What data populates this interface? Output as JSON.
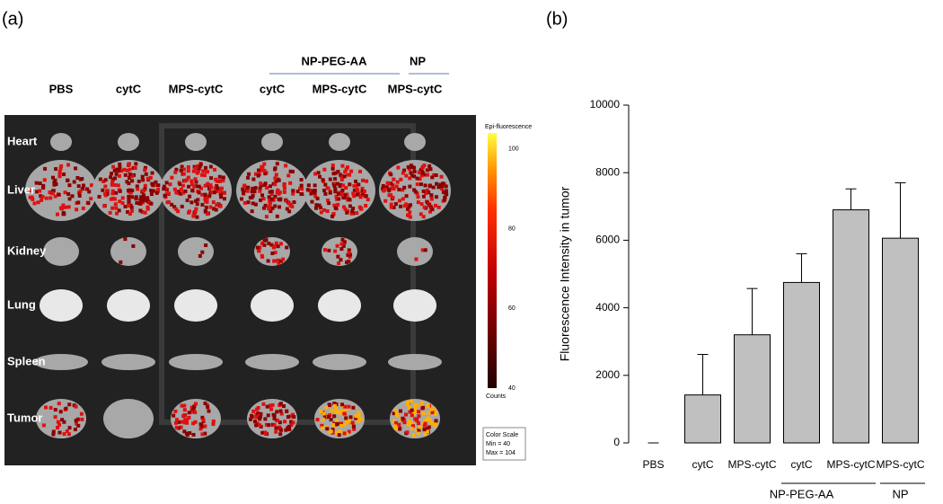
{
  "panel_a": {
    "label": "(a)",
    "columns": [
      "PBS",
      "cytC",
      "MPS-cytC",
      "cytC",
      "MPS-cytC",
      "MPS-cytC"
    ],
    "groups": [
      "NP-PEG-AA",
      "NP"
    ],
    "rows": [
      "Heart",
      "Liver",
      "Kidney",
      "Lung",
      "Spleen",
      "Tumor"
    ],
    "colorbar": {
      "title": "Epi-fluorescence",
      "ticks": [
        100,
        80,
        60,
        40
      ],
      "unit": "Counts"
    },
    "scale_box": [
      "Color Scale",
      "Min = 40",
      "Max = 104"
    ]
  },
  "chart_data": {
    "type": "bar",
    "panel_label": "(b)",
    "y_label": "Fluorescence Intensity in tumor",
    "categories": [
      "PBS",
      "cytC",
      "MPS-cytC",
      "cytC",
      "MPS-cytC",
      "MPS-cytC"
    ],
    "values": [
      0,
      1420,
      3200,
      4750,
      6900,
      6060
    ],
    "errors": [
      0,
      1200,
      1370,
      850,
      620,
      1640
    ],
    "groups": [
      "NP-PEG-AA",
      "NP"
    ],
    "color": "#c0c0c0",
    "ylim": [
      0,
      10000
    ],
    "yticks": [
      0,
      2000,
      4000,
      6000,
      8000,
      10000
    ]
  }
}
